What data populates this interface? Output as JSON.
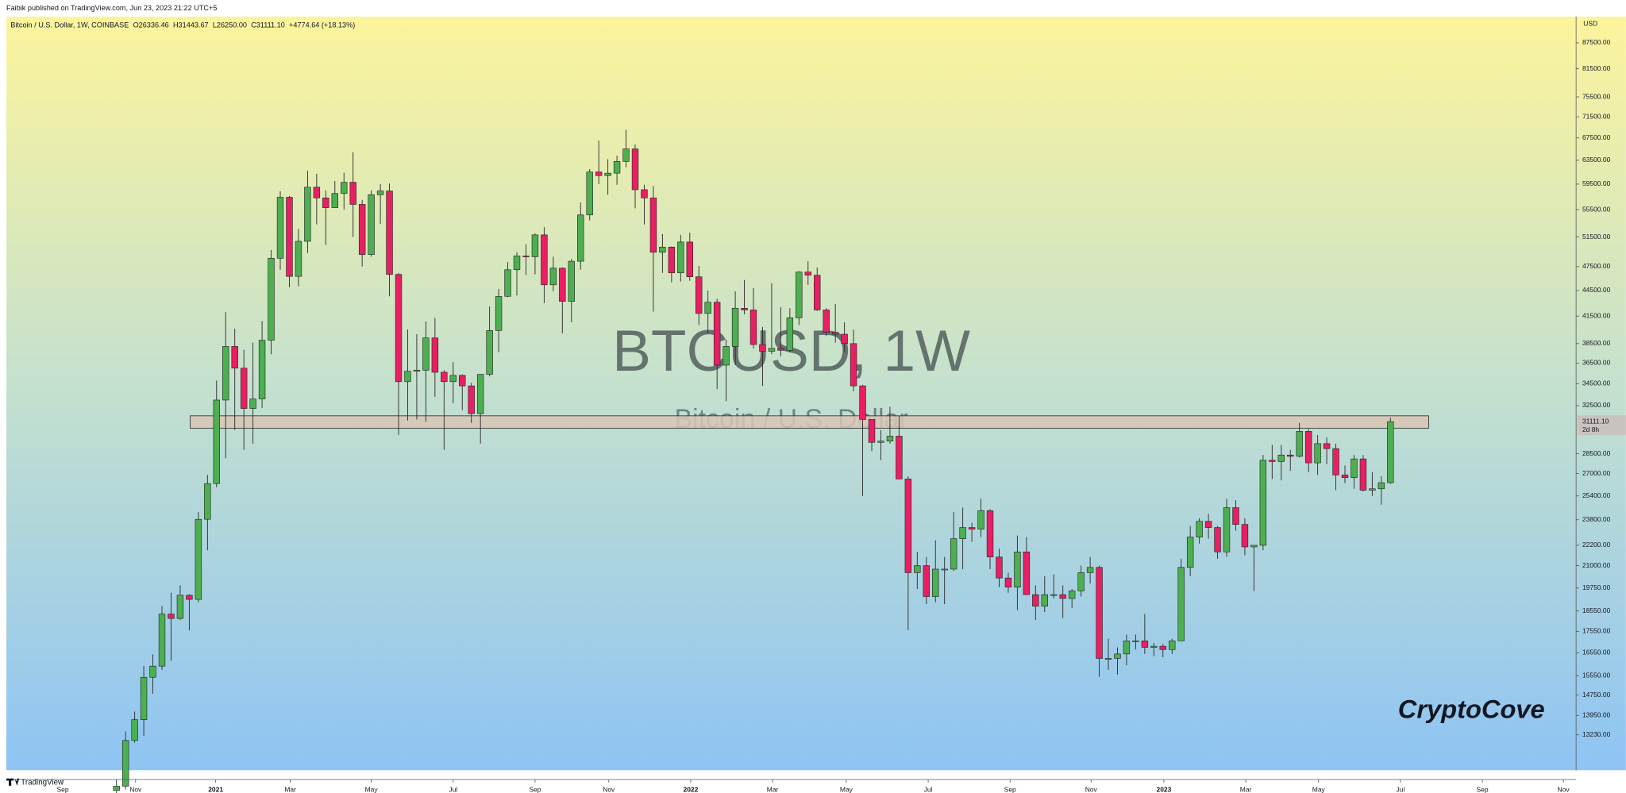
{
  "header": {
    "publisher": "Faibik published on TradingView.com, Jun 23, 2023 21:22 UTC+5"
  },
  "footer": {
    "brand": "TradingView"
  },
  "chart_data": {
    "type": "candlestick",
    "legend": {
      "symbol": "Bitcoin / U.S. Dollar, 1W, COINBASE",
      "open": "O26336.46",
      "high": "H31443.67",
      "low": "L26250.00",
      "close": "C31111.10",
      "change": "+4774.64 (+18.13%)"
    },
    "watermark": {
      "title": "BTCUSD, 1W",
      "subtitle": "Bitcoin / U.S. Dollar"
    },
    "annotation": "CryptoCove",
    "currency": "USD",
    "last_price_label": "31111.10",
    "countdown": "2d 8h",
    "up_color": "#4caf50",
    "down_color": "#e91e63",
    "zone": {
      "x": [
        8.1,
        144.2
      ],
      "y": [
        30560,
        31610
      ],
      "color": "#d9c6b6"
    },
    "log_scale": true,
    "grid": false,
    "xlim": [
      -12.1,
      160.4
    ],
    "xticks": [
      {
        "value": -5.9,
        "label": "Sep"
      },
      {
        "value": 2.1,
        "label": "Nov"
      },
      {
        "value": 10.9,
        "label": "2021"
      },
      {
        "value": 19.1,
        "label": "Mar"
      },
      {
        "value": 28.0,
        "label": "May"
      },
      {
        "value": 37.0,
        "label": "Jul"
      },
      {
        "value": 46.0,
        "label": "Sep"
      },
      {
        "value": 54.1,
        "label": "Nov"
      },
      {
        "value": 63.1,
        "label": "2022"
      },
      {
        "value": 72.1,
        "label": "Mar"
      },
      {
        "value": 80.2,
        "label": "May"
      },
      {
        "value": 89.2,
        "label": "Jul"
      },
      {
        "value": 98.2,
        "label": "Sep"
      },
      {
        "value": 107.1,
        "label": "Nov"
      },
      {
        "value": 115.1,
        "label": "2023"
      },
      {
        "value": 124.1,
        "label": "Mar"
      },
      {
        "value": 132.1,
        "label": "May"
      },
      {
        "value": 141.1,
        "label": "Jul"
      },
      {
        "value": 150.1,
        "label": "Sep"
      },
      {
        "value": 159.0,
        "label": "Nov"
      }
    ],
    "ylim": [
      12570,
      94000
    ],
    "yticks": [
      {
        "value": 87500,
        "label": "87500.00"
      },
      {
        "value": 81500,
        "label": "81500.00"
      },
      {
        "value": 75500,
        "label": "75500.00"
      },
      {
        "value": 71500,
        "label": "71500.00"
      },
      {
        "value": 67500,
        "label": "67500.00"
      },
      {
        "value": 63500,
        "label": "63500.00"
      },
      {
        "value": 59500,
        "label": "59500.00"
      },
      {
        "value": 55500,
        "label": "55500.00"
      },
      {
        "value": 51500,
        "label": "51500.00"
      },
      {
        "value": 47500,
        "label": "47500.00"
      },
      {
        "value": 44500,
        "label": "44500.00"
      },
      {
        "value": 41500,
        "label": "41500.00"
      },
      {
        "value": 38500,
        "label": "38500.00"
      },
      {
        "value": 36500,
        "label": "36500.00"
      },
      {
        "value": 34500,
        "label": "34500.00"
      },
      {
        "value": 32500,
        "label": "32500.00"
      },
      {
        "value": 28500,
        "label": "28500.00"
      },
      {
        "value": 27000,
        "label": "27000.00"
      },
      {
        "value": 25400,
        "label": "25400.00"
      },
      {
        "value": 23800,
        "label": "23800.00"
      },
      {
        "value": 22200,
        "label": "22200.00"
      },
      {
        "value": 21000,
        "label": "21000.00"
      },
      {
        "value": 19750,
        "label": "19750.00"
      },
      {
        "value": 18550,
        "label": "18550.00"
      },
      {
        "value": 17550,
        "label": "17550.00"
      },
      {
        "value": 16550,
        "label": "16550.00"
      },
      {
        "value": 15550,
        "label": "15550.00"
      },
      {
        "value": 14750,
        "label": "14750.00"
      },
      {
        "value": 13950,
        "label": "13950.00"
      },
      {
        "value": 13230,
        "label": "13230.00"
      }
    ],
    "candles": [
      [
        11370,
        11720,
        11200,
        11500
      ],
      [
        11500,
        13350,
        11400,
        13030
      ],
      [
        13030,
        14100,
        12950,
        13790
      ],
      [
        13790,
        15960,
        13200,
        15480
      ],
      [
        15480,
        16480,
        14800,
        15960
      ],
      [
        15960,
        18800,
        15800,
        18400
      ],
      [
        18400,
        19500,
        16200,
        18180
      ],
      [
        18180,
        19900,
        18100,
        19370
      ],
      [
        19370,
        19420,
        17600,
        19150
      ],
      [
        19150,
        24300,
        19000,
        23830
      ],
      [
        23830,
        26900,
        21900,
        26270
      ],
      [
        26270,
        34800,
        26000,
        33000
      ],
      [
        33000,
        41950,
        28150,
        38200
      ],
      [
        38200,
        40100,
        30400,
        36000
      ],
      [
        36000,
        37850,
        28800,
        32250
      ],
      [
        32250,
        38600,
        29300,
        33100
      ],
      [
        33100,
        40950,
        32300,
        38850
      ],
      [
        38850,
        49700,
        37400,
        48600
      ],
      [
        48600,
        58350,
        47100,
        57400
      ],
      [
        57400,
        57600,
        44900,
        46250
      ],
      [
        46250,
        52650,
        45000,
        50900
      ],
      [
        50900,
        61700,
        49300,
        59000
      ],
      [
        59000,
        61200,
        53300,
        57300
      ],
      [
        57300,
        58500,
        50400,
        55800
      ],
      [
        55800,
        60000,
        55800,
        58000
      ],
      [
        58000,
        61400,
        55500,
        59800
      ],
      [
        59800,
        64900,
        51500,
        56300
      ],
      [
        56300,
        57000,
        47500,
        49100
      ],
      [
        49100,
        58500,
        48800,
        57800
      ],
      [
        57800,
        59500,
        53400,
        58400
      ],
      [
        58400,
        59600,
        43800,
        46500
      ],
      [
        46500,
        46700,
        30000,
        34700
      ],
      [
        34700,
        40000,
        31200,
        35700
      ],
      [
        35700,
        39500,
        31300,
        35800
      ],
      [
        35800,
        40900,
        31100,
        39100
      ],
      [
        39100,
        41300,
        33300,
        35600
      ],
      [
        35600,
        35800,
        28800,
        34700
      ],
      [
        34700,
        36600,
        32700,
        35300
      ],
      [
        35300,
        35400,
        32100,
        34300
      ],
      [
        34300,
        34600,
        31000,
        31800
      ],
      [
        31800,
        35400,
        29300,
        35400
      ],
      [
        35400,
        42600,
        35200,
        39900
      ],
      [
        39900,
        44700,
        37600,
        43800
      ],
      [
        43800,
        48100,
        43700,
        47100
      ],
      [
        47100,
        49400,
        43900,
        48900
      ],
      [
        48900,
        50500,
        46400,
        48800
      ],
      [
        48800,
        52000,
        46500,
        51800
      ],
      [
        51800,
        52900,
        43000,
        45200
      ],
      [
        45200,
        48800,
        44400,
        47300
      ],
      [
        47300,
        47400,
        39600,
        43200
      ],
      [
        43200,
        48500,
        40800,
        48200
      ],
      [
        48200,
        56600,
        47100,
        54700
      ],
      [
        54700,
        62000,
        53900,
        61500
      ],
      [
        61500,
        67000,
        59500,
        60900
      ],
      [
        60900,
        63700,
        57800,
        61300
      ],
      [
        61300,
        64300,
        59400,
        63300
      ],
      [
        63300,
        69000,
        62300,
        65500
      ],
      [
        65500,
        66300,
        55700,
        58600
      ],
      [
        58600,
        59400,
        53300,
        57300
      ],
      [
        57300,
        59200,
        42000,
        49400
      ],
      [
        49400,
        51900,
        46700,
        50100
      ],
      [
        50100,
        50200,
        45500,
        46700
      ],
      [
        46700,
        51800,
        45600,
        50800
      ],
      [
        50800,
        52100,
        45700,
        46200
      ],
      [
        46200,
        47600,
        40500,
        41800
      ],
      [
        41800,
        44500,
        39600,
        43100
      ],
      [
        43100,
        43500,
        34000,
        36300
      ],
      [
        36300,
        38900,
        32900,
        38200
      ],
      [
        38200,
        44400,
        36300,
        42400
      ],
      [
        42400,
        45800,
        41700,
        42200
      ],
      [
        42200,
        44800,
        38000,
        38400
      ],
      [
        38400,
        40300,
        34300,
        37700
      ],
      [
        37700,
        45400,
        37400,
        38000
      ],
      [
        38000,
        42500,
        37200,
        37800
      ],
      [
        37800,
        42400,
        37600,
        41300
      ],
      [
        41300,
        46900,
        40500,
        46800
      ],
      [
        46800,
        48200,
        45200,
        46400
      ],
      [
        46400,
        47400,
        42100,
        42200
      ],
      [
        42200,
        42400,
        39300,
        39700
      ],
      [
        39700,
        42900,
        38600,
        39500
      ],
      [
        39500,
        40800,
        37600,
        38500
      ],
      [
        38500,
        40000,
        33800,
        34300
      ],
      [
        34300,
        34400,
        25400,
        31300
      ],
      [
        31300,
        31300,
        28700,
        29400
      ],
      [
        29400,
        30400,
        28000,
        29500
      ],
      [
        29500,
        32400,
        29300,
        29900
      ],
      [
        29900,
        31600,
        26600,
        26600
      ],
      [
        26600,
        26800,
        17600,
        20600
      ],
      [
        20600,
        21800,
        19700,
        21000
      ],
      [
        21000,
        21500,
        18900,
        19300
      ],
      [
        19300,
        22500,
        19000,
        20800
      ],
      [
        20800,
        21500,
        18900,
        20800
      ],
      [
        20800,
        24300,
        20700,
        22600
      ],
      [
        22600,
        24600,
        20800,
        23300
      ],
      [
        23300,
        23600,
        22400,
        23200
      ],
      [
        23200,
        25200,
        22700,
        24400
      ],
      [
        24400,
        24500,
        20800,
        21500
      ],
      [
        21500,
        22000,
        19800,
        20300
      ],
      [
        20300,
        20600,
        19500,
        19800
      ],
      [
        19800,
        22800,
        18600,
        21800
      ],
      [
        21800,
        22700,
        19400,
        19400
      ],
      [
        19400,
        19900,
        18100,
        18800
      ],
      [
        18800,
        20400,
        18500,
        19400
      ],
      [
        19400,
        20500,
        19200,
        19400
      ],
      [
        19400,
        19900,
        18200,
        19200
      ],
      [
        19200,
        19700,
        18700,
        19600
      ],
      [
        19600,
        21000,
        19300,
        20600
      ],
      [
        20600,
        21500,
        20000,
        20900
      ],
      [
        20900,
        21000,
        15500,
        16300
      ],
      [
        16300,
        17200,
        15800,
        16300
      ],
      [
        16300,
        16800,
        15600,
        16500
      ],
      [
        16500,
        17400,
        16000,
        17100
      ],
      [
        17100,
        17400,
        16700,
        17100
      ],
      [
        17100,
        18400,
        16500,
        16800
      ],
      [
        16800,
        17000,
        16400,
        16850
      ],
      [
        16850,
        16950,
        16350,
        16700
      ],
      [
        16700,
        17200,
        16500,
        17100
      ],
      [
        17100,
        21400,
        17100,
        20900
      ],
      [
        20900,
        23400,
        20400,
        22700
      ],
      [
        22700,
        23900,
        22300,
        23700
      ],
      [
        23700,
        24200,
        22600,
        23300
      ],
      [
        23300,
        23400,
        21400,
        21800
      ],
      [
        21800,
        25200,
        21500,
        24600
      ],
      [
        24600,
        25100,
        23100,
        23500
      ],
      [
        23500,
        23900,
        21600,
        22100
      ],
      [
        22100,
        22200,
        19600,
        22200
      ],
      [
        22200,
        28400,
        21900,
        28000
      ],
      [
        28000,
        29200,
        26600,
        27900
      ],
      [
        27900,
        29200,
        26500,
        28400
      ],
      [
        28400,
        28800,
        27200,
        28300
      ],
      [
        28300,
        31000,
        28200,
        30300
      ],
      [
        30300,
        30500,
        27100,
        27800
      ],
      [
        27800,
        30000,
        26900,
        29300
      ],
      [
        29300,
        29800,
        27700,
        28900
      ],
      [
        28900,
        29300,
        25800,
        26900
      ],
      [
        26900,
        27600,
        26300,
        26700
      ],
      [
        26700,
        28400,
        25900,
        28100
      ],
      [
        28100,
        28400,
        25700,
        25800
      ],
      [
        25800,
        27100,
        25400,
        25900
      ],
      [
        25900,
        26800,
        24800,
        26336.46
      ],
      [
        26336.46,
        31443.67,
        26250.0,
        31111.1
      ]
    ]
  }
}
